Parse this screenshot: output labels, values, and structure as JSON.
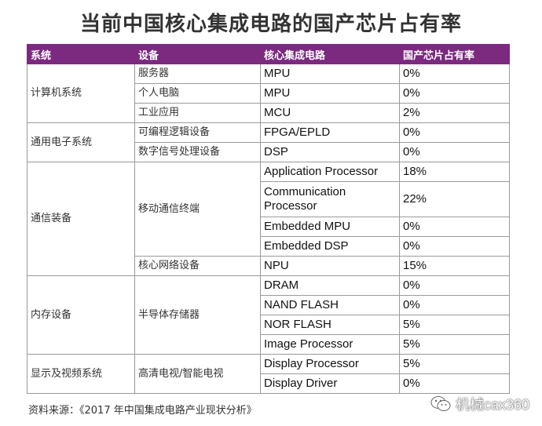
{
  "title": "当前中国核心集成电路的国产芯片占有率",
  "table": {
    "headers": [
      "系统",
      "设备",
      "核心集成电路",
      "国产芯片占有率"
    ],
    "groups": [
      {
        "system": "计算机系统",
        "devices": [
          {
            "name": "服务器",
            "chips": [
              {
                "chip": "MPU",
                "share": "0%"
              }
            ]
          },
          {
            "name": "个人电脑",
            "chips": [
              {
                "chip": "MPU",
                "share": "0%"
              }
            ]
          },
          {
            "name": "工业应用",
            "chips": [
              {
                "chip": "MCU",
                "share": "2%"
              }
            ]
          }
        ]
      },
      {
        "system": "通用电子系统",
        "devices": [
          {
            "name": "可编程逻辑设备",
            "chips": [
              {
                "chip": "FPGA/EPLD",
                "share": "0%"
              }
            ]
          },
          {
            "name": "数字信号处理设备",
            "chips": [
              {
                "chip": "DSP",
                "share": "0%"
              }
            ]
          }
        ]
      },
      {
        "system": "通信装备",
        "devices": [
          {
            "name": "移动通信终端",
            "chips": [
              {
                "chip": "Application Processor",
                "share": "18%"
              },
              {
                "chip": "Communication Processor",
                "share": "22%"
              },
              {
                "chip": "Embedded MPU",
                "share": "0%"
              },
              {
                "chip": "Embedded DSP",
                "share": "0%"
              }
            ]
          },
          {
            "name": "核心网络设备",
            "chips": [
              {
                "chip": "NPU",
                "share": "15%"
              }
            ]
          }
        ]
      },
      {
        "system": "内存设备",
        "devices": [
          {
            "name": "半导体存储器",
            "chips": [
              {
                "chip": "DRAM",
                "share": "0%"
              },
              {
                "chip": "NAND FLASH",
                "share": "0%"
              },
              {
                "chip": "NOR FLASH",
                "share": "5%"
              },
              {
                "chip": "Image Processor",
                "share": "5%"
              }
            ]
          }
        ]
      },
      {
        "system": "显示及视频系统",
        "devices": [
          {
            "name": "高清电视/智能电视",
            "chips": [
              {
                "chip": "Display Processor",
                "share": "5%"
              },
              {
                "chip": "Display Driver",
                "share": "0%"
              }
            ]
          }
        ]
      }
    ]
  },
  "source": "资料来源：《2017 年中国集成电路产业现状分析》",
  "watermark": {
    "text": "机械cax360",
    "icon": "wechat-icon"
  }
}
